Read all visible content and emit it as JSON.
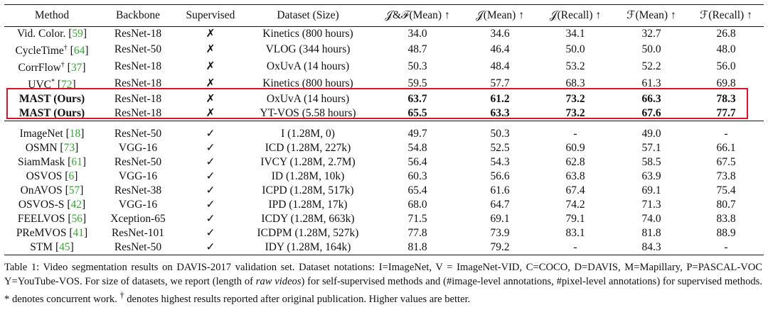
{
  "table": {
    "headers": {
      "method": "Method",
      "backbone": "Backbone",
      "supervised": "Supervised",
      "dataset": "Dataset (Size)",
      "jf_mean": "𝒥&ℱ(Mean) ↑",
      "j_mean": "𝒥(Mean) ↑",
      "j_recall": "𝒥(Recall) ↑",
      "f_mean": "ℱ(Mean) ↑",
      "f_recall": "ℱ(Recall) ↑"
    },
    "self_supervised": [
      {
        "method": "Vid. Color.",
        "sup": "",
        "ref": "59",
        "backbone": "ResNet-18",
        "supervised": "✗",
        "dataset": "Kinetics (800 hours)",
        "jf_mean": "34.0",
        "j_mean": "34.6",
        "j_recall": "34.1",
        "f_mean": "32.7",
        "f_recall": "26.8"
      },
      {
        "method": "CycleTime",
        "sup": "†",
        "ref": "64",
        "backbone": "ResNet-50",
        "supervised": "✗",
        "dataset": "VLOG (344 hours)",
        "jf_mean": "48.7",
        "j_mean": "46.4",
        "j_recall": "50.0",
        "f_mean": "50.0",
        "f_recall": "48.0"
      },
      {
        "method": "CorrFlow",
        "sup": "†",
        "ref": "37",
        "backbone": "ResNet-18",
        "supervised": "✗",
        "dataset": "OxUvA (14 hours)",
        "jf_mean": "50.3",
        "j_mean": "48.4",
        "j_recall": "53.2",
        "f_mean": "52.2",
        "f_recall": "56.0"
      },
      {
        "method": "UVC",
        "sup": "*",
        "ref": "72",
        "backbone": "ResNet-18",
        "supervised": "✗",
        "dataset": "Kinetics (800 hours)",
        "jf_mean": "59.5",
        "j_mean": "57.7",
        "j_recall": "68.3",
        "f_mean": "61.3",
        "f_recall": "69.8"
      }
    ],
    "ours": [
      {
        "method": "MAST (Ours)",
        "backbone": "ResNet-18",
        "supervised": "✗",
        "dataset": "OxUvA (14 hours)",
        "jf_mean": "63.7",
        "j_mean": "61.2",
        "j_recall": "73.2",
        "f_mean": "66.3",
        "f_recall": "78.3"
      },
      {
        "method": "MAST (Ours)",
        "backbone": "ResNet-18",
        "supervised": "✗",
        "dataset": "YT-VOS (5.58 hours)",
        "jf_mean": "65.5",
        "j_mean": "63.3",
        "j_recall": "73.2",
        "f_mean": "67.6",
        "f_recall": "77.7"
      }
    ],
    "supervised": [
      {
        "method": "ImageNet",
        "ref": "18",
        "backbone": "ResNet-50",
        "supervised": "✓",
        "dataset": "I (1.28M, 0)",
        "jf_mean": "49.7",
        "j_mean": "50.3",
        "j_recall": "-",
        "f_mean": "49.0",
        "f_recall": "-"
      },
      {
        "method": "OSMN",
        "ref": "73",
        "backbone": "VGG-16",
        "supervised": "✓",
        "dataset": "ICD (1.28M, 227k)",
        "jf_mean": "54.8",
        "j_mean": "52.5",
        "j_recall": "60.9",
        "f_mean": "57.1",
        "f_recall": "66.1"
      },
      {
        "method": "SiamMask",
        "ref": "61",
        "backbone": "ResNet-50",
        "supervised": "✓",
        "dataset": "IVCY (1.28M, 2.7M)",
        "jf_mean": "56.4",
        "j_mean": "54.3",
        "j_recall": "62.8",
        "f_mean": "58.5",
        "f_recall": "67.5"
      },
      {
        "method": "OSVOS",
        "ref": "6",
        "backbone": "VGG-16",
        "supervised": "✓",
        "dataset": "ID (1.28M, 10k)",
        "jf_mean": "60.3",
        "j_mean": "56.6",
        "j_recall": "63.8",
        "f_mean": "63.9",
        "f_recall": "73.8"
      },
      {
        "method": "OnAVOS",
        "ref": "57",
        "backbone": "ResNet-38",
        "supervised": "✓",
        "dataset": "ICPD (1.28M, 517k)",
        "jf_mean": "65.4",
        "j_mean": "61.6",
        "j_recall": "67.4",
        "f_mean": "69.1",
        "f_recall": "75.4"
      },
      {
        "method": "OSVOS-S",
        "ref": "42",
        "backbone": "VGG-16",
        "supervised": "✓",
        "dataset": "IPD (1.28M, 17k)",
        "jf_mean": "68.0",
        "j_mean": "64.7",
        "j_recall": "74.2",
        "f_mean": "71.3",
        "f_recall": "80.7"
      },
      {
        "method": "FEELVOS",
        "ref": "56",
        "backbone": "Xception-65",
        "supervised": "✓",
        "dataset": "ICDY (1.28M, 663k)",
        "jf_mean": "71.5",
        "j_mean": "69.1",
        "j_recall": "79.1",
        "f_mean": "74.0",
        "f_recall": "83.8"
      },
      {
        "method": "PReMVOS",
        "ref": "41",
        "backbone": "ResNet-101",
        "supervised": "✓",
        "dataset": "ICDPM (1.28M, 527k)",
        "jf_mean": "77.8",
        "j_mean": "73.9",
        "j_recall": "83.1",
        "f_mean": "81.8",
        "f_recall": "88.9"
      },
      {
        "method": "STM",
        "ref": "45",
        "backbone": "ResNet-50",
        "supervised": "✓",
        "dataset": "IDY (1.28M, 164k)",
        "jf_mean": "81.8",
        "j_mean": "79.2",
        "j_recall": "-",
        "f_mean": "84.3",
        "f_recall": "-"
      }
    ]
  },
  "caption": {
    "part1": "Table 1:  Video segmentation results on DAVIS-2017 validation set.  Dataset notations: I=ImageNet, V = ImageNet-VID, C=COCO, D=DAVIS, M=Mapillary, P=PASCAL-VOC Y=YouTube-VOS. For size of datasets, we report (length of ",
    "italic": "raw videos",
    "part2": ") for self-supervised methods and (#image-level annotations, #pixel-level annotations) for supervised methods.  * denotes concurrent work.  ",
    "dagger": "†",
    "part3": " denotes highest results reported after original publication. Higher values are better."
  },
  "colors": {
    "highlight_box": "#d8132a",
    "citation": "#2eaa2e"
  }
}
